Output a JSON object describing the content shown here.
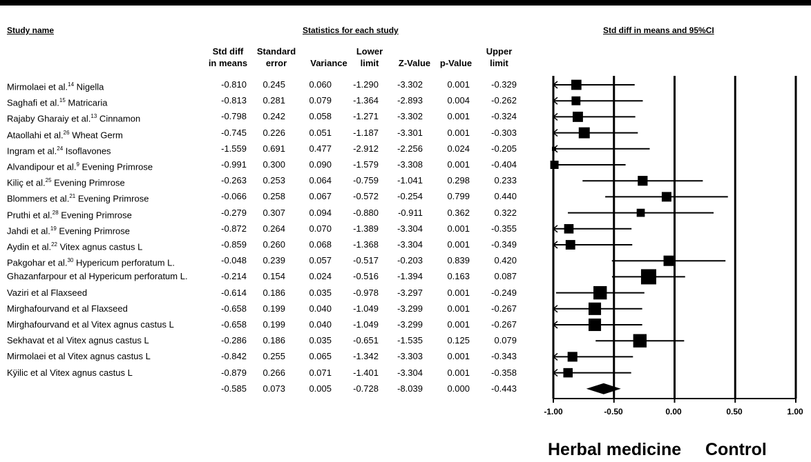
{
  "headers": {
    "study_name": "Study name",
    "statistics": "Statistics for each study",
    "plot_title": "Std diff in means and 95%CI"
  },
  "columns": [
    "Std diff\nin means",
    "Standard\nerror",
    "Variance",
    "Lower\nlimit",
    "Z-Value",
    "p-Value",
    "Upper\nlimit"
  ],
  "chart_data": {
    "type": "forest",
    "xlim": [
      -1.0,
      1.0
    ],
    "ticks": [
      "-1.00",
      "-0.50",
      "0.00",
      "0.50",
      "1.00"
    ],
    "side_labels": [
      "Herbal medicine",
      "Control"
    ],
    "studies": [
      {
        "name": "Mirmolaei  et al.",
        "sup": "14",
        "suffix": " Nigella",
        "smd": -0.81,
        "se": 0.245,
        "var": 0.06,
        "lower": -1.29,
        "z": -3.302,
        "p": 0.001,
        "upper": -0.329
      },
      {
        "name": "Saghafi et al.",
        "sup": "15",
        "suffix": " Matricaria",
        "smd": -0.813,
        "se": 0.281,
        "var": 0.079,
        "lower": -1.364,
        "z": -2.893,
        "p": 0.004,
        "upper": -0.262
      },
      {
        "name": "Rajaby Gharaiy et al.",
        "sup": "13",
        "suffix": " Cinnamon",
        "smd": -0.798,
        "se": 0.242,
        "var": 0.058,
        "lower": -1.271,
        "z": -3.302,
        "p": 0.001,
        "upper": -0.324
      },
      {
        "name": "Ataollahi et al.",
        "sup": "26",
        "suffix": " Wheat Germ",
        "smd": -0.745,
        "se": 0.226,
        "var": 0.051,
        "lower": -1.187,
        "z": -3.301,
        "p": 0.001,
        "upper": -0.303
      },
      {
        "name": "Ingram et al.",
        "sup": "24",
        "suffix": " Isoflavones",
        "smd": -1.559,
        "se": 0.691,
        "var": 0.477,
        "lower": -2.912,
        "z": -2.256,
        "p": 0.024,
        "upper": -0.205
      },
      {
        "name": "Alvandipour et al.",
        "sup": "9",
        "suffix": " Evening Primrose",
        "smd": -0.991,
        "se": 0.3,
        "var": 0.09,
        "lower": -1.579,
        "z": -3.308,
        "p": 0.001,
        "upper": -0.404
      },
      {
        "name": "Kiliç et al.",
        "sup": "25",
        "suffix": " Evening Primrose",
        "smd": -0.263,
        "se": 0.253,
        "var": 0.064,
        "lower": -0.759,
        "z": -1.041,
        "p": 0.298,
        "upper": 0.233
      },
      {
        "name": "Blommers et al.",
        "sup": "21",
        "suffix": " Evening Primrose",
        "smd": -0.066,
        "se": 0.258,
        "var": 0.067,
        "lower": -0.572,
        "z": -0.254,
        "p": 0.799,
        "upper": 0.44
      },
      {
        "name": "Pruthi et al.",
        "sup": "28",
        "suffix": " Evening Primrose",
        "smd": -0.279,
        "se": 0.307,
        "var": 0.094,
        "lower": -0.88,
        "z": -0.911,
        "p": 0.362,
        "upper": 0.322
      },
      {
        "name": "Jahdi et al.",
        "sup": "19",
        "suffix": " Evening Primrose",
        "smd": -0.872,
        "se": 0.264,
        "var": 0.07,
        "lower": -1.389,
        "z": -3.304,
        "p": 0.001,
        "upper": -0.355
      },
      {
        "name": "Aydin et al.",
        "sup": "22",
        "suffix": " Vitex agnus castus L",
        "smd": -0.859,
        "se": 0.26,
        "var": 0.068,
        "lower": -1.368,
        "z": -3.304,
        "p": 0.001,
        "upper": -0.349
      },
      {
        "name": "Pakgohar et al.",
        "sup": "30",
        "suffix": " Hypericum perforatum L.",
        "smd": -0.048,
        "se": 0.239,
        "var": 0.057,
        "lower": -0.517,
        "z": -0.203,
        "p": 0.839,
        "upper": 0.42
      },
      {
        "name": "Ghazanfarpour et al Hypericum perforatum L.",
        "sup": "",
        "suffix": "",
        "smd": -0.214,
        "se": 0.154,
        "var": 0.024,
        "lower": -0.516,
        "z": -1.394,
        "p": 0.163,
        "upper": 0.087
      },
      {
        "name": "Vaziri  et al Flaxseed",
        "sup": "",
        "suffix": "",
        "smd": -0.614,
        "se": 0.186,
        "var": 0.035,
        "lower": -0.978,
        "z": -3.297,
        "p": 0.001,
        "upper": -0.249
      },
      {
        "name": "Mirghafourvand et al Flaxseed",
        "sup": "",
        "suffix": "",
        "smd": -0.658,
        "se": 0.199,
        "var": 0.04,
        "lower": -1.049,
        "z": -3.299,
        "p": 0.001,
        "upper": -0.267
      },
      {
        "name": "Mirghafourvand et al Vitex agnus castus L",
        "sup": "",
        "suffix": "",
        "smd": -0.658,
        "se": 0.199,
        "var": 0.04,
        "lower": -1.049,
        "z": -3.299,
        "p": 0.001,
        "upper": -0.267
      },
      {
        "name": "Sekhavat et al Vitex agnus castus L",
        "sup": "",
        "suffix": "",
        "smd": -0.286,
        "se": 0.186,
        "var": 0.035,
        "lower": -0.651,
        "z": -1.535,
        "p": 0.125,
        "upper": 0.079
      },
      {
        "name": "Mirmolaei  et al Vitex agnus castus L",
        "sup": "",
        "suffix": "",
        "smd": -0.842,
        "se": 0.255,
        "var": 0.065,
        "lower": -1.342,
        "z": -3.303,
        "p": 0.001,
        "upper": -0.343
      },
      {
        "name": "Kÿilic et al Vitex agnus castus L",
        "sup": "",
        "suffix": "",
        "smd": -0.879,
        "se": 0.266,
        "var": 0.071,
        "lower": -1.401,
        "z": -3.304,
        "p": 0.001,
        "upper": -0.358
      }
    ],
    "summary": {
      "smd": -0.585,
      "se": 0.073,
      "var": 0.005,
      "lower": -0.728,
      "z": -8.039,
      "p": 0.0,
      "upper": -0.443
    }
  }
}
